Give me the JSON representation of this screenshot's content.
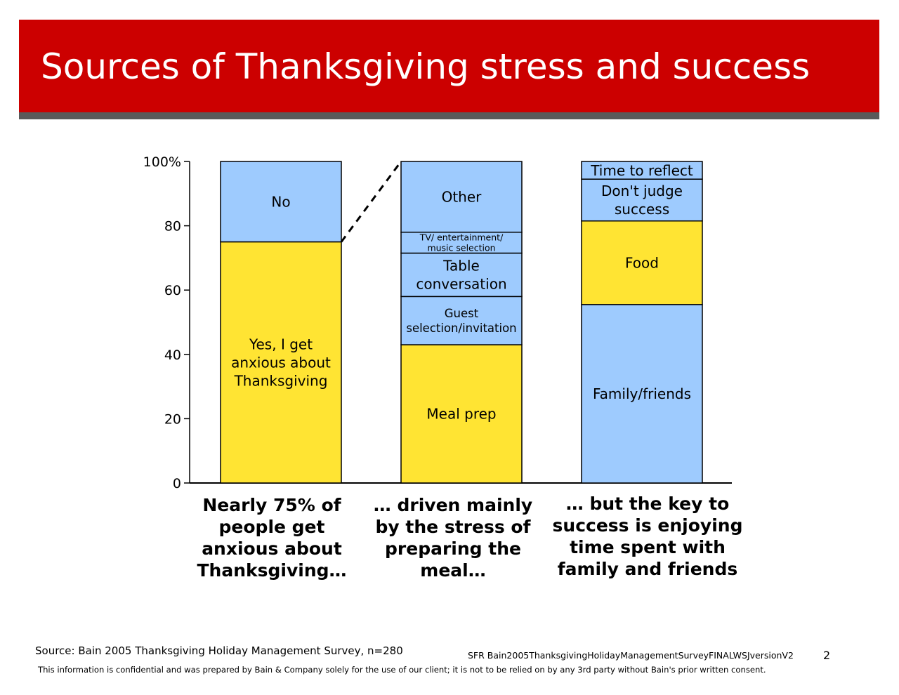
{
  "slide": {
    "title": "Sources of Thanksgiving stress and success",
    "source": "Source:  Bain 2005 Thanksgiving Holiday Management Survey, n=280",
    "doc_id": "SFR   Bain2005ThanksgivingHolidayManagementSurveyFINALWSJversionV2",
    "page_number": "2",
    "disclaimer": "This information is confidential and was prepared by Bain & Company solely for the use of our client; it is not to be relied on by any 3rd party without Bain's prior written consent."
  },
  "colors": {
    "title_bar": "#cc0000",
    "title_underline": "#5a5a5a",
    "yellow": "#ffe433",
    "blue": "#9ecbfe"
  },
  "chart_data": {
    "type": "bar",
    "stacked": true,
    "ylim": [
      0,
      100
    ],
    "yticks": [
      "0",
      "20",
      "40",
      "60",
      "80",
      "100%"
    ],
    "ytick_values": [
      0,
      20,
      40,
      60,
      80,
      100
    ],
    "grid": false,
    "connector": {
      "from_bar": 0,
      "from_value": 75,
      "to_bar": 1,
      "to_value": 100,
      "style": "dashed"
    },
    "bars": [
      {
        "caption": [
          "Nearly 75% of",
          "people get",
          "anxious about",
          "Thanksgiving…"
        ],
        "segments": [
          {
            "label": [
              "Yes, I get",
              "anxious about",
              "Thanksgiving"
            ],
            "value": 75,
            "color": "yellow"
          },
          {
            "label": [
              "No"
            ],
            "value": 25,
            "color": "blue"
          }
        ]
      },
      {
        "caption": [
          "… driven mainly",
          "by the stress of",
          "preparing the",
          "meal…"
        ],
        "segments": [
          {
            "label": [
              "Meal prep"
            ],
            "value": 43,
            "color": "yellow"
          },
          {
            "label": [
              "Guest",
              "selection/invitation"
            ],
            "value": 15,
            "color": "blue"
          },
          {
            "label": [
              "Table",
              "conversation"
            ],
            "value": 13.5,
            "color": "blue"
          },
          {
            "label": [
              "TV/ entertainment/",
              "music selection"
            ],
            "value": 6.5,
            "color": "blue",
            "small": true
          },
          {
            "label": [
              "Other"
            ],
            "value": 22,
            "color": "blue"
          }
        ]
      },
      {
        "caption": [
          "… but the key to",
          "success is enjoying",
          "time spent with",
          "family and friends"
        ],
        "segments": [
          {
            "label": [
              "Family/friends"
            ],
            "value": 55.5,
            "color": "blue"
          },
          {
            "label": [
              "Food"
            ],
            "value": 26,
            "color": "yellow"
          },
          {
            "label": [
              "Don't judge",
              "success"
            ],
            "value": 13,
            "color": "blue"
          },
          {
            "label": [
              "Time to reflect"
            ],
            "value": 5.5,
            "color": "blue"
          }
        ]
      }
    ]
  }
}
